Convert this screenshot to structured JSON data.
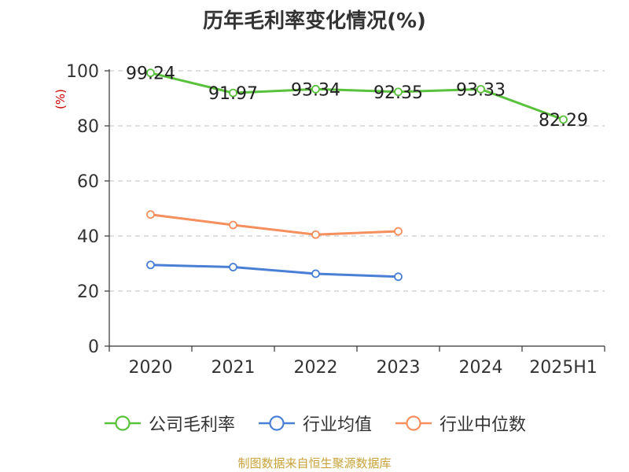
{
  "title": "历年毛利率变化情况(%)",
  "source": "制图数据来自恒生聚源数据库",
  "chart_data": {
    "type": "line",
    "title": "历年毛利率变化情况(%)",
    "ylabel": "(%)",
    "xlabel": "",
    "categories": [
      "2020",
      "2021",
      "2022",
      "2023",
      "2024",
      "2025H1"
    ],
    "ylim": [
      0,
      100
    ],
    "yticks": [
      0,
      20,
      40,
      60,
      80,
      100
    ],
    "grid": true,
    "legend_position": "bottom",
    "series": [
      {
        "name": "公司毛利率",
        "color": "#5ac13c",
        "values": [
          99.24,
          91.97,
          93.34,
          92.35,
          93.33,
          82.29
        ],
        "labels": [
          "99.24",
          "91.97",
          "93.34",
          "92.35",
          "93.33",
          "82.29"
        ]
      },
      {
        "name": "行业均值",
        "color": "#4a7fd6",
        "values": [
          29.5,
          28.7,
          26.3,
          25.2,
          null,
          null
        ]
      },
      {
        "name": "行业中位数",
        "color": "#f58f5d",
        "values": [
          47.8,
          44.0,
          40.5,
          41.7,
          null,
          null
        ]
      }
    ]
  }
}
